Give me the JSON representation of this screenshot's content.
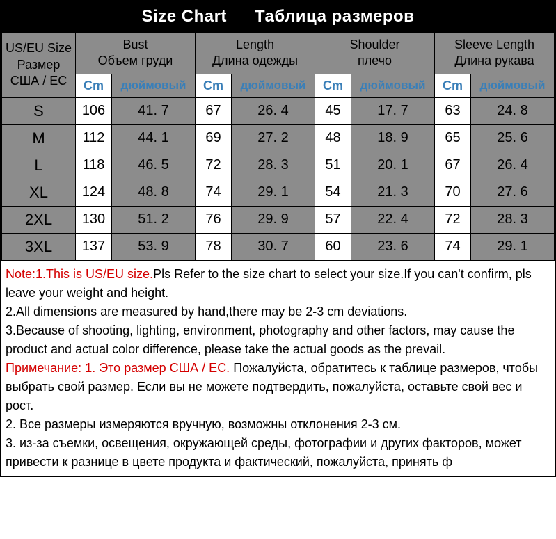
{
  "title": {
    "en": "Size Chart",
    "ru": "Таблица размеров"
  },
  "header": {
    "size": {
      "line1": "US/EU Size",
      "line2": "Размер",
      "line3": "США / ЕС"
    },
    "cols": [
      {
        "en": "Bust",
        "ru": "Объем груди"
      },
      {
        "en": "Length",
        "ru": "Длина одежды"
      },
      {
        "en": "Shoulder",
        "ru": "плечо"
      },
      {
        "en": "Sleeve Length",
        "ru": "Длина рукава"
      }
    ],
    "sub": {
      "cm": "Cm",
      "in": "дюймовый"
    }
  },
  "rows": [
    {
      "size": "S",
      "v": [
        "106",
        "41. 7",
        "67",
        "26. 4",
        "45",
        "17. 7",
        "63",
        "24. 8"
      ]
    },
    {
      "size": "M",
      "v": [
        "112",
        "44. 1",
        "69",
        "27. 2",
        "48",
        "18. 9",
        "65",
        "25. 6"
      ]
    },
    {
      "size": "L",
      "v": [
        "118",
        "46. 5",
        "72",
        "28. 3",
        "51",
        "20. 1",
        "67",
        "26. 4"
      ]
    },
    {
      "size": "XL",
      "v": [
        "124",
        "48. 8",
        "74",
        "29. 1",
        "54",
        "21. 3",
        "70",
        "27. 6"
      ]
    },
    {
      "size": "2XL",
      "v": [
        "130",
        "51. 2",
        "76",
        "29. 9",
        "57",
        "22. 4",
        "72",
        "28. 3"
      ]
    },
    {
      "size": "3XL",
      "v": [
        "137",
        "53. 9",
        "78",
        "30. 7",
        "60",
        "23. 6",
        "74",
        "29. 1"
      ]
    }
  ],
  "notes": {
    "en1a": "Note:1.This is US/EU size.",
    "en1b": "Pls Refer to the size chart to select your size.If you can't confirm, pls leave your weight and height.",
    "en2": "2.All dimensions are measured by hand,there may be 2-3 cm deviations.",
    "en3": "3.Because of shooting, lighting, environment, photography and other factors, may cause the product and actual color difference, please take the actual goods as the prevail.",
    "ru1a": "Примечание: 1. Это размер США / ЕС. ",
    "ru1b": "Пожалуйста, обратитесь к таблице размеров, чтобы выбрать свой размер. Если вы не можете подтвердить, пожалуйста, оставьте свой вес и рост.",
    "ru2": "2. Все размеры измеряются вручную, возможны отклонения 2-3 см.",
    "ru3": "3. из-за съемки, освещения, окружающей среды, фотографии и других факторов, может привести к разнице в цвете продукта и фактический, пожалуйста, принять ф"
  }
}
